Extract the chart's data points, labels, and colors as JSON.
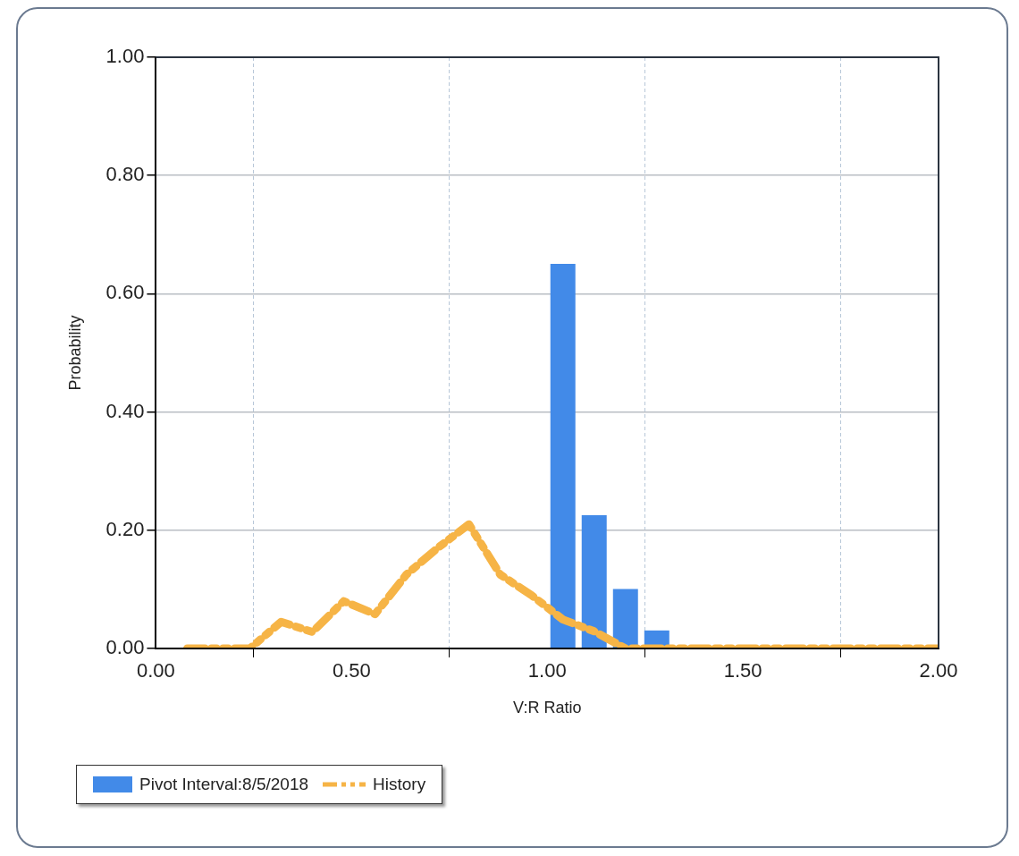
{
  "chart_data": {
    "type": "bar",
    "xlabel": "V:R Ratio",
    "ylabel": "Probability",
    "xlim": [
      0,
      2
    ],
    "xticks": [
      {
        "value": 0,
        "label": "0.00"
      },
      {
        "value": 0.5,
        "label": "0.50"
      },
      {
        "value": 1,
        "label": "1.00"
      },
      {
        "value": 1.5,
        "label": "1.50"
      },
      {
        "value": 2,
        "label": "2.00"
      }
    ],
    "ylim": [
      0,
      1
    ],
    "yticks": [
      {
        "value": 0,
        "label": "0.00"
      },
      {
        "value": 0.2,
        "label": "0.20"
      },
      {
        "value": 0.4,
        "label": "0.40"
      },
      {
        "value": 0.6,
        "label": "0.60"
      },
      {
        "value": 0.8,
        "label": "0.80"
      },
      {
        "value": 1,
        "label": "1.00"
      }
    ],
    "grid": true,
    "legend": "bottom left",
    "marker": "none",
    "series": [
      {
        "name": "Pivot Interval:8/5/2018",
        "color": "#428ae8",
        "x": [
          1.04,
          1.12,
          1.2,
          1.28
        ],
        "values": [
          0.65,
          0.225,
          0.1,
          0.03
        ]
      },
      {
        "name": "History",
        "type": "line",
        "color": "#f6b446",
        "line_style": "dashed",
        "x": [
          0.08,
          0.16,
          0.24,
          0.32,
          0.4,
          0.48,
          0.56,
          0.64,
          0.72,
          0.8,
          0.88,
          0.96,
          1.04,
          1.12,
          1.2,
          1.28,
          1.36,
          1.44,
          1.52,
          1.6,
          1.68,
          1.76,
          1.84,
          1.92,
          2.0
        ],
        "values": [
          0,
          0,
          0,
          0.045,
          0.028,
          0.08,
          0.058,
          0.125,
          0.17,
          0.21,
          0.125,
          0.09,
          0.049,
          0.029,
          0,
          0,
          0,
          0,
          0,
          0,
          0,
          0,
          0,
          0,
          0
        ]
      }
    ]
  }
}
